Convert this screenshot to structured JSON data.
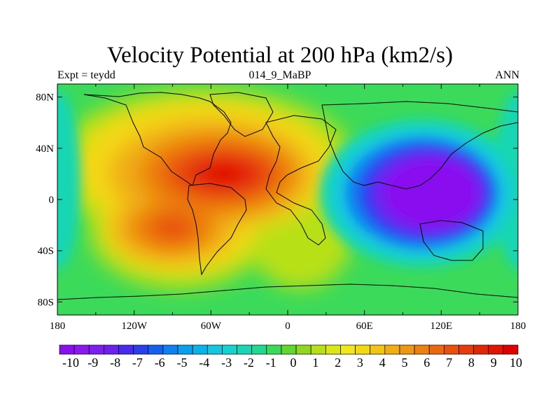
{
  "title": "Velocity Potential at 200 hPa (km2/s)",
  "left_string": "Expt = teydd",
  "center_string": "014_9_MaBP",
  "right_string": "ANN",
  "x_ticks": [
    {
      "lon": -180,
      "label": "180"
    },
    {
      "lon": -120,
      "label": "120W"
    },
    {
      "lon": -60,
      "label": "60W"
    },
    {
      "lon": 0,
      "label": "0"
    },
    {
      "lon": 60,
      "label": "60E"
    },
    {
      "lon": 120,
      "label": "120E"
    },
    {
      "lon": 180,
      "label": "180"
    }
  ],
  "y_ticks": [
    {
      "lat": 80,
      "label": "80N"
    },
    {
      "lat": 40,
      "label": "40N"
    },
    {
      "lat": 0,
      "label": "0"
    },
    {
      "lat": -40,
      "label": "40S"
    },
    {
      "lat": -80,
      "label": "80S"
    }
  ],
  "colorbar": {
    "labels": [
      "-10",
      "-9",
      "-8",
      "-7",
      "-6",
      "-5",
      "-4",
      "-3",
      "-2",
      "-1",
      "0",
      "1",
      "2",
      "3",
      "4",
      "5",
      "6",
      "7",
      "8",
      "9",
      "10"
    ],
    "colors": [
      "#8a0ff0",
      "#8c18f0",
      "#7e1ef0",
      "#6e20f0",
      "#4b2af0",
      "#2a3ef0",
      "#1660f0",
      "#0e80f0",
      "#0aa0f0",
      "#0ab4e8",
      "#12c8e0",
      "#14d2d0",
      "#18d6b4",
      "#20d890",
      "#3cda5a",
      "#60d830",
      "#90d820",
      "#b8e018",
      "#dce814",
      "#f0e818",
      "#f4d814",
      "#f2c414",
      "#f0ae12",
      "#ee9812",
      "#ec8010",
      "#ea680e",
      "#e8500c",
      "#e63c0a",
      "#e42608",
      "#e21406",
      "#e00000"
    ],
    "min": -10,
    "max": 10
  },
  "chart_data": {
    "type": "heatmap",
    "title": "Velocity Potential at 200 hPa (km2/s)",
    "experiment": "Expt = teydd",
    "case": "014_9_MaBP",
    "season": "ANN",
    "units": "km2/s",
    "lon_range": [
      -180,
      180
    ],
    "lat_range": [
      -90,
      90
    ],
    "value_range": [
      -10,
      10
    ],
    "field_centers": [
      {
        "lon": -50,
        "lat": 22,
        "value": 9.5,
        "note": "maximum over northern South America / tropical Atlantic"
      },
      {
        "lon": -88,
        "lat": -22,
        "value": 7,
        "note": "secondary maximum over southeast Pacific"
      },
      {
        "lon": 110,
        "lat": 5,
        "value": -10,
        "note": "minimum over Indian Ocean / maritime region"
      }
    ],
    "approx_values": [
      {
        "lon": -170,
        "lat": 0,
        "value": 0
      },
      {
        "lon": -120,
        "lat": 20,
        "value": 5
      },
      {
        "lon": -60,
        "lat": 60,
        "value": 3
      },
      {
        "lon": -20,
        "lat": 0,
        "value": 5
      },
      {
        "lon": 20,
        "lat": -20,
        "value": 2
      },
      {
        "lon": 60,
        "lat": 0,
        "value": -3
      },
      {
        "lon": 90,
        "lat": 30,
        "value": -8
      },
      {
        "lon": 140,
        "lat": -30,
        "value": -9
      },
      {
        "lon": 160,
        "lat": 70,
        "value": -1
      },
      {
        "lon": 0,
        "lat": -80,
        "value": 0
      },
      {
        "lon": -100,
        "lat": 80,
        "value": 1
      }
    ]
  }
}
